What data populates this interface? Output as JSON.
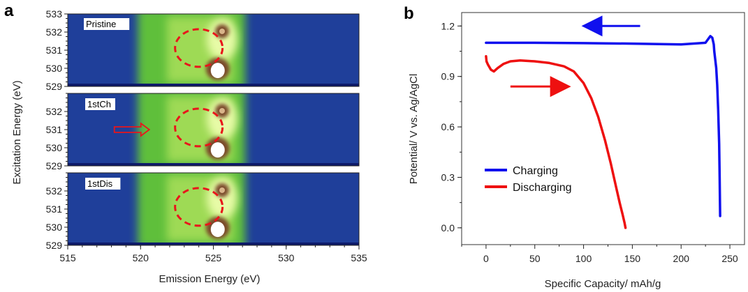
{
  "panel_labels": {
    "a": "a",
    "b": "b"
  },
  "chart_data": [
    {
      "type": "heatmap",
      "panel": "a",
      "xlabel": "Emission Energy (eV)",
      "ylabel": "Excitation Energy (eV)",
      "xlim": [
        515,
        535
      ],
      "x_ticks": [
        515,
        520,
        525,
        530,
        535
      ],
      "ylim": [
        529,
        533
      ],
      "panels": [
        {
          "label": "Pristine",
          "y_ticks": [
            529,
            530,
            531,
            532,
            533
          ]
        },
        {
          "label": "1stCh",
          "y_ticks": [
            529,
            530,
            531,
            532
          ]
        },
        {
          "label": "1stDis",
          "y_ticks": [
            529,
            530,
            531,
            532
          ]
        }
      ],
      "annotations": [
        {
          "type": "dashed-ellipse",
          "color": "#e8161b",
          "center_eV": [
            524.0,
            531.2
          ],
          "note": "all three panels"
        },
        {
          "type": "arrow",
          "color": "#e8161b",
          "panel": "1stCh",
          "from_eV": 518.2,
          "to_eV": 520.6,
          "at_eV": 531.0
        }
      ],
      "colors": {
        "low": "#1f3f9a",
        "mid": "#5fbf3a",
        "high": "#f0ffb0",
        "peak": "#ffffff",
        "peak_ring": "#7a4a2c"
      }
    },
    {
      "type": "line",
      "panel": "b",
      "xlabel": "Specific Capacity/ mAh/g",
      "ylabel": "Potential/ V vs. Ag/AgCl",
      "xlim": [
        -25,
        265
      ],
      "ylim": [
        -0.1,
        1.28
      ],
      "x_ticks": [
        0,
        50,
        100,
        150,
        200,
        250
      ],
      "y_ticks": [
        0.0,
        0.3,
        0.6,
        0.9,
        1.2
      ],
      "y_tick_labels": [
        "0.0",
        "0.3",
        "0.6",
        "0.9",
        "1.2"
      ],
      "legend_position": "bottom-left",
      "series": [
        {
          "name": "Charging",
          "color": "#1010ee",
          "x": [
            240,
            239.5,
            239,
            238,
            237,
            236,
            235,
            234,
            233.5,
            232,
            230,
            225,
            200,
            150,
            100,
            50,
            20,
            0
          ],
          "y": [
            0.07,
            0.3,
            0.5,
            0.7,
            0.85,
            0.95,
            1.0,
            1.05,
            1.09,
            1.13,
            1.14,
            1.1,
            1.09,
            1.095,
            1.098,
            1.1,
            1.1,
            1.1
          ]
        },
        {
          "name": "Discharging",
          "color": "#ee1010",
          "x": [
            0,
            0.5,
            2,
            5,
            8,
            12,
            18,
            25,
            35,
            50,
            65,
            80,
            90,
            100,
            108,
            115,
            122,
            128,
            133,
            137,
            140,
            142,
            143
          ],
          "y": [
            1.02,
            0.99,
            0.97,
            0.94,
            0.93,
            0.95,
            0.975,
            0.99,
            0.995,
            0.99,
            0.98,
            0.96,
            0.93,
            0.86,
            0.77,
            0.66,
            0.52,
            0.38,
            0.25,
            0.15,
            0.08,
            0.03,
            0.0
          ]
        }
      ],
      "annotations": [
        {
          "type": "arrow",
          "color": "#1010ee",
          "from": [
            158,
            1.2
          ],
          "to": [
            100,
            1.2
          ]
        },
        {
          "type": "arrow",
          "color": "#ee1010",
          "from": [
            25,
            0.84
          ],
          "to": [
            85,
            0.84
          ]
        }
      ]
    }
  ]
}
